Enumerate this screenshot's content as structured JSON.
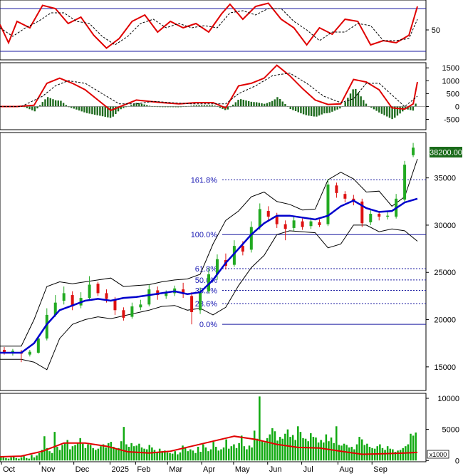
{
  "colors": {
    "background": "#ffffff",
    "frame": "#000000",
    "fib_line": "#1a1aa0",
    "fib_text": "#1a1ab4",
    "ma_line": "#0000cc",
    "band_line": "#000000",
    "candle_up": "#22aa22",
    "candle_down": "#dd1111",
    "indicator_red": "#e00000",
    "signal_dash": "#000000",
    "histogram": "#1f6b1f",
    "volume_bar": "#11aa11",
    "volume_ma": "#e00000",
    "price_tag_bg": "#1a6b1a",
    "price_tag_text": "#ffffff"
  },
  "chart_data": [
    {
      "type": "line",
      "panel": "rsi",
      "y_ticks": [
        50
      ],
      "y_tick_labels": [
        "50"
      ],
      "levels": [
        70,
        30
      ],
      "ylim": [
        22,
        78
      ],
      "series": [
        {
          "style": "solid-red",
          "x": [
            0,
            0.02,
            0.04,
            0.07,
            0.1,
            0.13,
            0.16,
            0.19,
            0.22,
            0.25,
            0.28,
            0.31,
            0.34,
            0.37,
            0.4,
            0.43,
            0.46,
            0.49,
            0.52,
            0.54,
            0.57,
            0.6,
            0.63,
            0.66,
            0.69,
            0.72,
            0.75,
            0.78,
            0.81,
            0.84,
            0.87,
            0.9,
            0.93,
            0.96,
            0.98
          ],
          "values": [
            55,
            38,
            58,
            52,
            73,
            70,
            56,
            62,
            45,
            33,
            42,
            58,
            64,
            48,
            58,
            52,
            56,
            48,
            65,
            74,
            60,
            72,
            75,
            60,
            52,
            36,
            52,
            46,
            60,
            58,
            36,
            40,
            38,
            45,
            72
          ]
        },
        {
          "style": "dashed-black",
          "x": [
            0,
            0.03,
            0.06,
            0.09,
            0.12,
            0.15,
            0.18,
            0.21,
            0.24,
            0.27,
            0.3,
            0.33,
            0.36,
            0.39,
            0.42,
            0.45,
            0.48,
            0.51,
            0.54,
            0.57,
            0.6,
            0.63,
            0.66,
            0.69,
            0.72,
            0.75,
            0.78,
            0.81,
            0.84,
            0.87,
            0.9,
            0.93,
            0.96,
            0.98
          ],
          "values": [
            52,
            44,
            52,
            58,
            66,
            66,
            58,
            56,
            44,
            36,
            44,
            56,
            60,
            52,
            56,
            52,
            54,
            52,
            66,
            68,
            64,
            70,
            70,
            58,
            50,
            40,
            48,
            48,
            56,
            54,
            40,
            40,
            42,
            60
          ]
        }
      ]
    },
    {
      "type": "line",
      "panel": "macd",
      "y_ticks": [
        1500,
        1000,
        500,
        0,
        -500
      ],
      "y_tick_labels": [
        "1500",
        "1000",
        "500",
        "0",
        "-500"
      ],
      "ylim": [
        -900,
        1700
      ],
      "zero_line": 0,
      "series": [
        {
          "style": "solid-red",
          "x": [
            0,
            0.04,
            0.08,
            0.11,
            0.14,
            0.17,
            0.2,
            0.23,
            0.26,
            0.29,
            0.32,
            0.35,
            0.38,
            0.42,
            0.46,
            0.5,
            0.53,
            0.56,
            0.59,
            0.62,
            0.65,
            0.68,
            0.71,
            0.74,
            0.77,
            0.8,
            0.83,
            0.86,
            0.89,
            0.92,
            0.95,
            0.97,
            0.98
          ],
          "values": [
            0,
            0,
            50,
            900,
            1100,
            900,
            650,
            250,
            -150,
            50,
            250,
            200,
            150,
            100,
            150,
            150,
            -60,
            800,
            900,
            1100,
            1600,
            1200,
            700,
            250,
            80,
            100,
            1050,
            950,
            650,
            -50,
            -100,
            100,
            950
          ]
        },
        {
          "style": "dashed-black",
          "x": [
            0,
            0.05,
            0.1,
            0.13,
            0.16,
            0.2,
            0.24,
            0.28,
            0.32,
            0.36,
            0.4,
            0.45,
            0.5,
            0.53,
            0.56,
            0.6,
            0.64,
            0.68,
            0.72,
            0.76,
            0.8,
            0.83,
            0.86,
            0.89,
            0.92,
            0.95,
            0.98
          ],
          "values": [
            0,
            0,
            400,
            800,
            1000,
            900,
            500,
            100,
            100,
            200,
            150,
            100,
            100,
            100,
            500,
            800,
            1200,
            1300,
            900,
            400,
            150,
            300,
            900,
            900,
            450,
            0,
            400
          ]
        }
      ]
    },
    {
      "type": "line",
      "panel": "price",
      "price_tag": "38200.00",
      "y_ticks": [
        35000,
        30000,
        25000,
        20000,
        15000
      ],
      "y_tick_labels": [
        "35000",
        "30000",
        "25000",
        "20000",
        "15000"
      ],
      "ylim": [
        12500,
        39800
      ],
      "fibonacci": [
        {
          "label": "161.8%",
          "value": 34800
        },
        {
          "label": "100.0%",
          "value": 29000
        },
        {
          "label": "61.8%",
          "value": 25400
        },
        {
          "label": "50.0%",
          "value": 24200
        },
        {
          "label": "38.2%",
          "value": 23100
        },
        {
          "label": "23.6%",
          "value": 21700
        },
        {
          "label": "0.0%",
          "value": 19500
        }
      ],
      "x_tick_labels": [
        "Oct",
        "Nov",
        "Dec",
        "2025",
        "Feb",
        "Mar",
        "Apr",
        "May",
        "Jun",
        "Jul",
        "Aug",
        "Sep"
      ],
      "x_tick_positions": [
        0.0,
        0.09,
        0.17,
        0.255,
        0.315,
        0.39,
        0.47,
        0.545,
        0.625,
        0.705,
        0.79,
        0.87
      ],
      "series": [
        {
          "name": "",
          "style": "ma-blue",
          "x": [
            0,
            0.05,
            0.08,
            0.11,
            0.14,
            0.17,
            0.2,
            0.23,
            0.26,
            0.29,
            0.32,
            0.35,
            0.38,
            0.41,
            0.44,
            0.47,
            0.5,
            0.53,
            0.56,
            0.59,
            0.62,
            0.65,
            0.68,
            0.71,
            0.74,
            0.77,
            0.8,
            0.83,
            0.86,
            0.89,
            0.92,
            0.95,
            0.98
          ],
          "values": [
            16500,
            16500,
            17500,
            19500,
            21000,
            21500,
            22000,
            22200,
            22000,
            22300,
            22400,
            22600,
            22800,
            23000,
            22700,
            22900,
            24200,
            26000,
            27500,
            29000,
            30200,
            31000,
            31000,
            30800,
            30600,
            31000,
            32000,
            32600,
            31800,
            31400,
            31500,
            32400,
            32800
          ]
        },
        {
          "name": "",
          "style": "band-black",
          "x": [
            0,
            0.05,
            0.08,
            0.11,
            0.14,
            0.17,
            0.2,
            0.23,
            0.26,
            0.29,
            0.32,
            0.35,
            0.38,
            0.41,
            0.44,
            0.47,
            0.5,
            0.53,
            0.56,
            0.59,
            0.62,
            0.65,
            0.68,
            0.71,
            0.74,
            0.77,
            0.8,
            0.83,
            0.86,
            0.89,
            0.92,
            0.95,
            0.98
          ],
          "values": [
            17200,
            17200,
            20000,
            23500,
            24000,
            23800,
            24000,
            24200,
            24400,
            23500,
            23600,
            23700,
            24000,
            24200,
            24300,
            24800,
            28000,
            30500,
            31500,
            33000,
            33500,
            32500,
            32200,
            31600,
            31700,
            34800,
            35600,
            34900,
            33500,
            33600,
            32000,
            33000,
            37000
          ]
        },
        {
          "name": "",
          "style": "band-black",
          "x": [
            0,
            0.05,
            0.08,
            0.11,
            0.14,
            0.17,
            0.2,
            0.23,
            0.26,
            0.29,
            0.32,
            0.35,
            0.38,
            0.41,
            0.44,
            0.47,
            0.5,
            0.53,
            0.56,
            0.59,
            0.62,
            0.65,
            0.68,
            0.71,
            0.74,
            0.77,
            0.8,
            0.83,
            0.86,
            0.89,
            0.92,
            0.95,
            0.98
          ],
          "values": [
            15800,
            15800,
            15500,
            14700,
            18000,
            19500,
            20000,
            20300,
            20100,
            20400,
            20700,
            21000,
            21400,
            21500,
            21000,
            21200,
            20500,
            21300,
            23600,
            25500,
            26800,
            29000,
            29400,
            29300,
            29200,
            27600,
            28000,
            30000,
            30000,
            29300,
            29600,
            29400,
            28300
          ]
        }
      ],
      "candles": [
        [
          0.01,
          16800,
          16500,
          17100,
          16300
        ],
        [
          0.03,
          16500,
          16700,
          16900,
          16200
        ],
        [
          0.05,
          16600,
          16400,
          16800,
          15500
        ],
        [
          0.07,
          16300,
          16600,
          16800,
          16100
        ],
        [
          0.09,
          16500,
          18000,
          18300,
          16400
        ],
        [
          0.11,
          18000,
          20500,
          21200,
          17800
        ],
        [
          0.13,
          20500,
          21800,
          22600,
          20300
        ],
        [
          0.15,
          22000,
          22800,
          23500,
          21600
        ],
        [
          0.17,
          22600,
          21400,
          23000,
          21000
        ],
        [
          0.19,
          21500,
          22300,
          22900,
          21200
        ],
        [
          0.21,
          22300,
          23700,
          24600,
          22000
        ],
        [
          0.23,
          23800,
          22800,
          24000,
          22500
        ],
        [
          0.25,
          22800,
          22200,
          23200,
          21800
        ],
        [
          0.27,
          22100,
          21000,
          22400,
          20500
        ],
        [
          0.29,
          21000,
          20200,
          21300,
          19900
        ],
        [
          0.31,
          20300,
          21400,
          21800,
          20100
        ],
        [
          0.33,
          21300,
          21600,
          22100,
          21000
        ],
        [
          0.35,
          21600,
          23200,
          23700,
          21400
        ],
        [
          0.37,
          23100,
          22600,
          23500,
          22100
        ],
        [
          0.39,
          22500,
          22800,
          23100,
          22200
        ],
        [
          0.41,
          22800,
          23300,
          23600,
          22500
        ],
        [
          0.43,
          23200,
          22700,
          23900,
          22300
        ],
        [
          0.45,
          22500,
          20800,
          22900,
          19500
        ],
        [
          0.47,
          21000,
          22900,
          23400,
          20600
        ],
        [
          0.49,
          23000,
          24800,
          25500,
          22800
        ],
        [
          0.51,
          24800,
          26400,
          26900,
          24200
        ],
        [
          0.53,
          26300,
          25700,
          27000,
          25300
        ],
        [
          0.55,
          25800,
          27800,
          28400,
          25600
        ],
        [
          0.57,
          27800,
          27200,
          28300,
          26800
        ],
        [
          0.59,
          27400,
          29800,
          30400,
          27100
        ],
        [
          0.61,
          29800,
          31700,
          32300,
          29500
        ],
        [
          0.63,
          31500,
          30900,
          32000,
          30400
        ],
        [
          0.65,
          30900,
          30100,
          31300,
          29700
        ],
        [
          0.67,
          30100,
          29600,
          30500,
          28400
        ],
        [
          0.69,
          29700,
          30500,
          30900,
          29400
        ],
        [
          0.71,
          30400,
          29800,
          30700,
          29500
        ],
        [
          0.73,
          29900,
          30400,
          30800,
          29600
        ],
        [
          0.75,
          30300,
          30000,
          30600,
          29800
        ],
        [
          0.77,
          30100,
          34300,
          34900,
          29900
        ],
        [
          0.79,
          34200,
          33400,
          34500,
          32900
        ],
        [
          0.81,
          33300,
          32800,
          33600,
          32400
        ],
        [
          0.83,
          32800,
          32500,
          33200,
          32100
        ],
        [
          0.85,
          32500,
          30200,
          32800,
          29800
        ],
        [
          0.87,
          30300,
          31200,
          31700,
          30000
        ],
        [
          0.89,
          31200,
          30900,
          31500,
          30500
        ],
        [
          0.91,
          30900,
          31000,
          31400,
          30600
        ],
        [
          0.93,
          30900,
          32800,
          33300,
          30700
        ],
        [
          0.95,
          32700,
          36400,
          36800,
          32500
        ],
        [
          0.97,
          37400,
          38200,
          38700,
          37200
        ]
      ]
    },
    {
      "type": "bar",
      "panel": "volume",
      "y_ticks": [
        10000,
        5000,
        0
      ],
      "y_tick_labels": [
        "10000",
        "5000",
        "0"
      ],
      "unit_label": "x1000",
      "ylim": [
        -200,
        10800
      ],
      "volume_ma": {
        "x": [
          0,
          0.05,
          0.1,
          0.15,
          0.2,
          0.25,
          0.3,
          0.35,
          0.4,
          0.45,
          0.5,
          0.55,
          0.6,
          0.65,
          0.7,
          0.75,
          0.8,
          0.85,
          0.9,
          0.95,
          0.98
        ],
        "values": [
          600,
          700,
          1500,
          2800,
          2800,
          2300,
          1400,
          1200,
          1500,
          2300,
          3100,
          3900,
          3400,
          2600,
          2100,
          2000,
          1500,
          1000,
          1100,
          1200,
          1300
        ]
      },
      "bars": [
        600,
        500,
        400,
        300,
        500,
        600,
        400,
        300,
        500,
        700,
        400,
        300,
        900,
        500,
        800,
        1200,
        1700,
        3900,
        2000,
        1500,
        1200,
        4600,
        2200,
        1700,
        2500,
        2900,
        3300,
        1800,
        2300,
        2500,
        2800,
        3600,
        2700,
        2000,
        2600,
        2500,
        2000,
        1700,
        1900,
        2300,
        2600,
        2100,
        2800,
        3000,
        2200,
        1800,
        2000,
        3100,
        5400,
        2600,
        2200,
        2800,
        2300,
        2400,
        2700,
        2100,
        1900,
        1800,
        2500,
        2100,
        1700,
        1400,
        1900,
        1500,
        1600,
        1300,
        1200,
        1100,
        1500,
        1000,
        1300,
        2400,
        2000,
        1500,
        1800,
        1600,
        1200,
        2200,
        1400,
        2600,
        2100,
        1500,
        1800,
        3000,
        2200,
        1600,
        1800,
        2100,
        3400,
        1900,
        2300,
        2600,
        2000,
        2800,
        4000,
        2300,
        1800,
        2400,
        2100,
        4800,
        3500,
        10300,
        3200,
        2900,
        3600,
        4200,
        5200,
        4700,
        3200,
        3800,
        3500,
        4300,
        5000,
        3800,
        4100,
        3300,
        5500,
        4600,
        3600,
        3500,
        3100,
        4400,
        3800,
        3700,
        2900,
        3300,
        2900,
        4200,
        3100,
        3700,
        2800,
        5500,
        2500,
        2400,
        2700,
        2500,
        2100,
        2200,
        1800,
        2600,
        3800,
        3400,
        2500,
        2700,
        2200,
        2000,
        1900,
        2300,
        2600,
        2000,
        1700,
        2300,
        1900,
        1800,
        1400,
        1600,
        1700,
        2000,
        2300,
        2600,
        4300,
        4000,
        4500
      ]
    }
  ]
}
